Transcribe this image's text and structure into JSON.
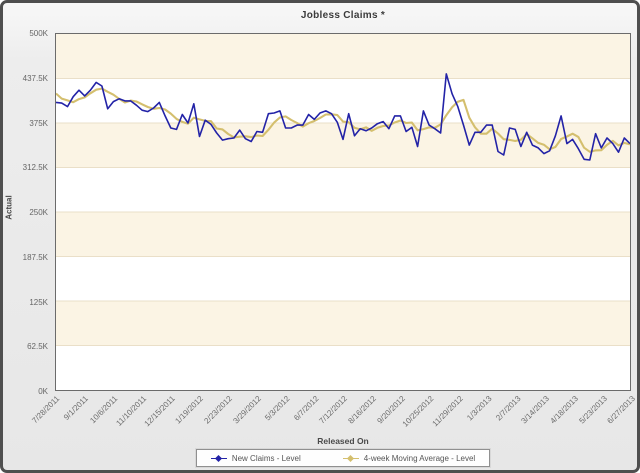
{
  "title": "Jobless Claims *",
  "axes": {
    "y_title": "Actual",
    "x_title": "Released On"
  },
  "chart_data": {
    "type": "line",
    "title": "Jobless Claims *",
    "xlabel": "Released On",
    "ylabel": "Actual",
    "unit": "K",
    "ylim": [
      0,
      500
    ],
    "grid": "horizontal-bands",
    "legend_position": "bottom",
    "band_colors": [
      "#fbf4e4",
      "#ffffff"
    ],
    "gridline_color": "#eadfc8",
    "y_tick_labels": [
      "500K",
      "437.5K",
      "375K",
      "312.5K",
      "250K",
      "187.5K",
      "125K",
      "62.5K",
      "0K"
    ],
    "x_tick_interval": 5,
    "x_tick_labels": [
      "7/28/2011",
      "9/1/2011",
      "10/6/2011",
      "11/10/2011",
      "12/15/2011",
      "1/19/2012",
      "2/23/2012",
      "3/29/2012",
      "5/3/2012",
      "6/7/2012",
      "7/12/2012",
      "8/16/2012",
      "9/20/2012",
      "10/25/2012",
      "11/29/2012",
      "1/3/2013",
      "2/7/2013",
      "3/14/2013",
      "4/18/2013",
      "5/23/2013",
      "6/27/2013"
    ],
    "series": [
      {
        "name": "New Claims - Level",
        "color": "#2323a7",
        "stroke_width": 1.6,
        "values": [
          404,
          403,
          398,
          412,
          421,
          413,
          421,
          432,
          427,
          395,
          405,
          409,
          406,
          406,
          400,
          393,
          391,
          396,
          404,
          385,
          368,
          366,
          387,
          375,
          402,
          356,
          379,
          373,
          361,
          351,
          353,
          354,
          365,
          353,
          349,
          363,
          362,
          388,
          389,
          392,
          368,
          368,
          372,
          372,
          387,
          380,
          389,
          392,
          388,
          376,
          352,
          388,
          357,
          367,
          364,
          368,
          374,
          377,
          367,
          385,
          385,
          363,
          369,
          342,
          392,
          372,
          367,
          361,
          444,
          416,
          398,
          372,
          344,
          362,
          362,
          372,
          372,
          335,
          330,
          368,
          366,
          342,
          362,
          344,
          340,
          332,
          336,
          357,
          385,
          346,
          352,
          339,
          324,
          323,
          360,
          340,
          354,
          346,
          334,
          354,
          346
        ]
      },
      {
        "name": "4-week Moving Average - Level",
        "color": "#d4bf6e",
        "stroke_width": 2.1,
        "values": [
          416.5,
          409.25,
          406.75,
          404.25,
          408.5,
          411,
          416.75,
          421.75,
          423.25,
          418.75,
          414.75,
          409,
          403.75,
          406.5,
          405.25,
          401.25,
          397.5,
          395,
          396,
          394,
          388.25,
          380.75,
          376.5,
          374,
          382.5,
          380,
          378,
          377.5,
          367.25,
          366,
          359.5,
          354.75,
          355.75,
          356.25,
          355.25,
          357.5,
          356.75,
          365.5,
          375.5,
          382.75,
          384.25,
          379.25,
          375,
          370,
          374.75,
          377.75,
          382,
          387,
          387.25,
          386.25,
          377,
          376,
          368.25,
          366,
          369,
          364,
          368.25,
          370.75,
          371.5,
          375.75,
          378.5,
          375,
          375.5,
          364.75,
          366.5,
          368.75,
          368.25,
          373,
          386,
          397,
          404.75,
          407.5,
          382.5,
          369,
          360,
          360,
          367,
          360.25,
          352.25,
          351.25,
          349.75,
          351.5,
          359.5,
          353.5,
          347,
          344.5,
          338,
          341.25,
          352.5,
          356,
          360,
          355.5,
          340.25,
          334.5,
          336.5,
          336.75,
          344.25,
          350,
          343.5,
          347,
          345
        ]
      }
    ]
  }
}
